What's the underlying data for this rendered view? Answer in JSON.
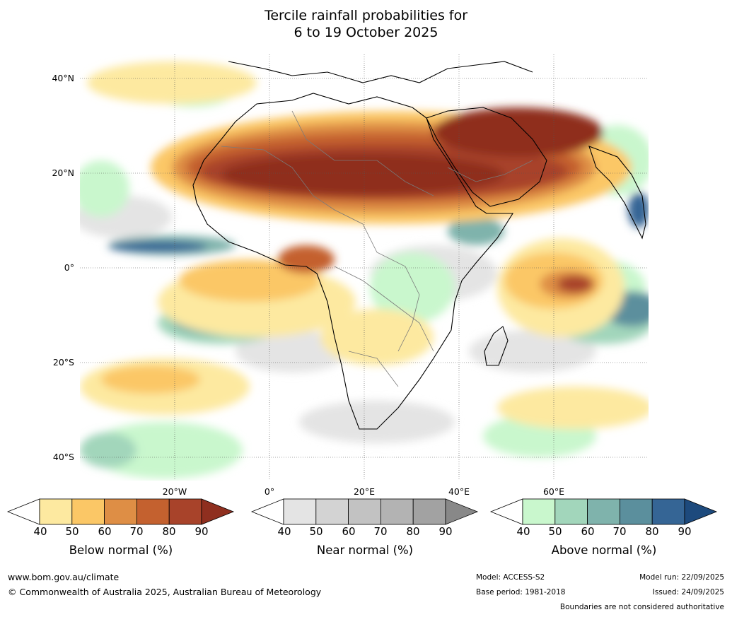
{
  "title_line1": "Tercile rainfall probabilities for",
  "title_line2": "6 to 19 October 2025",
  "map": {
    "lat_labels": [
      "40°N",
      "20°N",
      "0°",
      "20°S",
      "40°S"
    ],
    "lon_labels": [
      "20°W",
      "0°",
      "20°E",
      "40°E",
      "60°E"
    ]
  },
  "colorbars": [
    {
      "label": "Below normal (%)",
      "ticks": [
        "40",
        "50",
        "60",
        "70",
        "80",
        "90"
      ],
      "colors": [
        "#ffffff",
        "#fde9a0",
        "#fbc766",
        "#de8e45",
        "#c4612f",
        "#a8432a",
        "#8f2f1f"
      ]
    },
    {
      "label": "Near normal (%)",
      "ticks": [
        "40",
        "50",
        "60",
        "70",
        "80",
        "90"
      ],
      "colors": [
        "#ffffff",
        "#e4e4e4",
        "#d3d3d3",
        "#c2c2c2",
        "#b3b3b3",
        "#a2a2a2",
        "#888888"
      ]
    },
    {
      "label": "Above normal (%)",
      "ticks": [
        "40",
        "50",
        "60",
        "70",
        "80",
        "90"
      ],
      "colors": [
        "#ffffff",
        "#c9f7cd",
        "#a2d6bb",
        "#7fb3ac",
        "#5b8f9d",
        "#356595",
        "#1d4a7d"
      ]
    }
  ],
  "footer": {
    "website": "www.bom.gov.au/climate",
    "copyright": "© Commonwealth of Australia 2025, Australian Bureau of Meteorology",
    "model": "Model: ACCESS-S2",
    "base_period": "Base period: 1981-2018",
    "model_run": "Model run: 22/09/2025",
    "issued": "Issued: 24/09/2025",
    "disclaimer": "Boundaries are not considered authoritative"
  }
}
